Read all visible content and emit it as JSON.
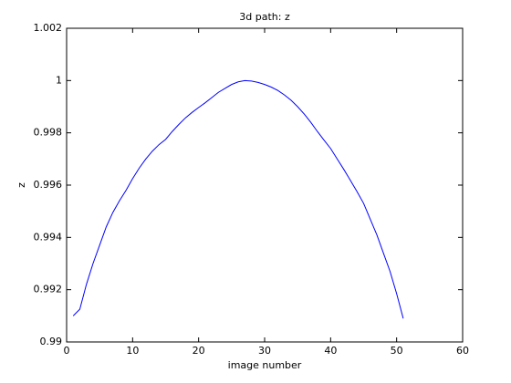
{
  "chart_data": {
    "type": "line",
    "title": "3d path: z",
    "x_label": "image number",
    "y_label": "z",
    "x": [
      1,
      2,
      3,
      4,
      5,
      6,
      7,
      8,
      9,
      10,
      11,
      12,
      13,
      14,
      15,
      16,
      17,
      18,
      19,
      20,
      21,
      22,
      23,
      24,
      25,
      26,
      27,
      28,
      29,
      30,
      31,
      32,
      33,
      34,
      35,
      36,
      37,
      38,
      39,
      40,
      41,
      42,
      43,
      44,
      45,
      46,
      47,
      48,
      49,
      50,
      51
    ],
    "values": [
      0.991,
      0.99125,
      0.9922,
      0.993,
      0.9937,
      0.9944,
      0.99495,
      0.9954,
      0.9958,
      0.99625,
      0.99665,
      0.997,
      0.9973,
      0.99755,
      0.99775,
      0.99805,
      0.99832,
      0.99857,
      0.99878,
      0.99897,
      0.99915,
      0.99935,
      0.99955,
      0.9997,
      0.99985,
      0.99995,
      1.0,
      0.99998,
      0.99993,
      0.99985,
      0.99975,
      0.99962,
      0.99945,
      0.99925,
      0.999,
      0.99872,
      0.9984,
      0.99805,
      0.99772,
      0.9974,
      0.997,
      0.9966,
      0.99618,
      0.99575,
      0.9953,
      0.9947,
      0.9941,
      0.9934,
      0.9927,
      0.99185,
      0.9909
    ],
    "color": "#0000ff",
    "xlim": [
      0,
      60
    ],
    "xticks": [
      0,
      10,
      20,
      30,
      40,
      50,
      60
    ],
    "ylim": [
      0.99,
      1.002
    ],
    "yticks": [
      0.99,
      0.992,
      0.994,
      0.996,
      0.998,
      1,
      1.002
    ]
  }
}
